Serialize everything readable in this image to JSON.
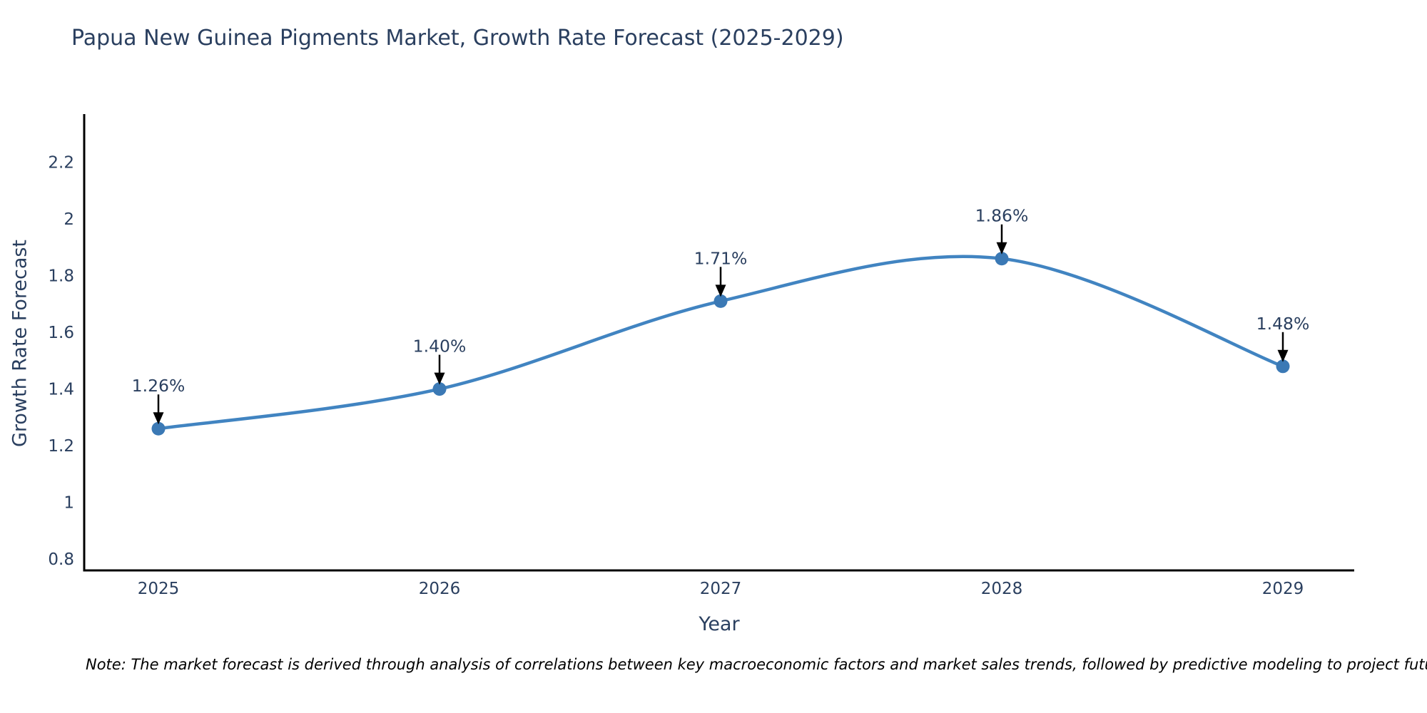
{
  "note": {
    "text": "Note: The market forecast is derived through analysis of correlations between key macroeconomic factors and market sales trends, followed by predictive modeling to project future sales"
  },
  "colors": {
    "background": "#ffffff",
    "line": "#4184c1",
    "marker": "#3b79b5",
    "title_text": "#2a3f5f",
    "axis_text": "#2a3f5f",
    "axis_line": "#000000",
    "annotation_text": "#2a3f5f",
    "annotation_arrow": "#000000",
    "note_text": "#000000"
  },
  "chart_data": {
    "type": "line",
    "title": "Papua New Guinea Pigments Market, Growth Rate Forecast (2025-2029)",
    "xlabel": "Year",
    "ylabel": "Growth Rate Forecast",
    "categories": [
      "2025",
      "2026",
      "2027",
      "2028",
      "2029"
    ],
    "values": [
      1.26,
      1.4,
      1.71,
      1.86,
      1.48
    ],
    "point_labels": [
      "1.26%",
      "1.40%",
      "1.71%",
      "1.86%",
      "1.48%"
    ],
    "line_shape": "spline",
    "markers_on": true,
    "grid": false,
    "legend_position": "none",
    "annotation_style": "value-label-with-down-arrow-to-point",
    "ytick_labels": [
      "0.8",
      "1",
      "1.2",
      "1.4",
      "1.6",
      "1.8",
      "2",
      "2.2"
    ],
    "ytick_values": [
      0.8,
      1.0,
      1.2,
      1.4,
      1.6,
      1.8,
      2.0,
      2.2
    ],
    "ylim": [
      0.76,
      2.37
    ],
    "axes_shown": [
      "left",
      "bottom"
    ]
  }
}
